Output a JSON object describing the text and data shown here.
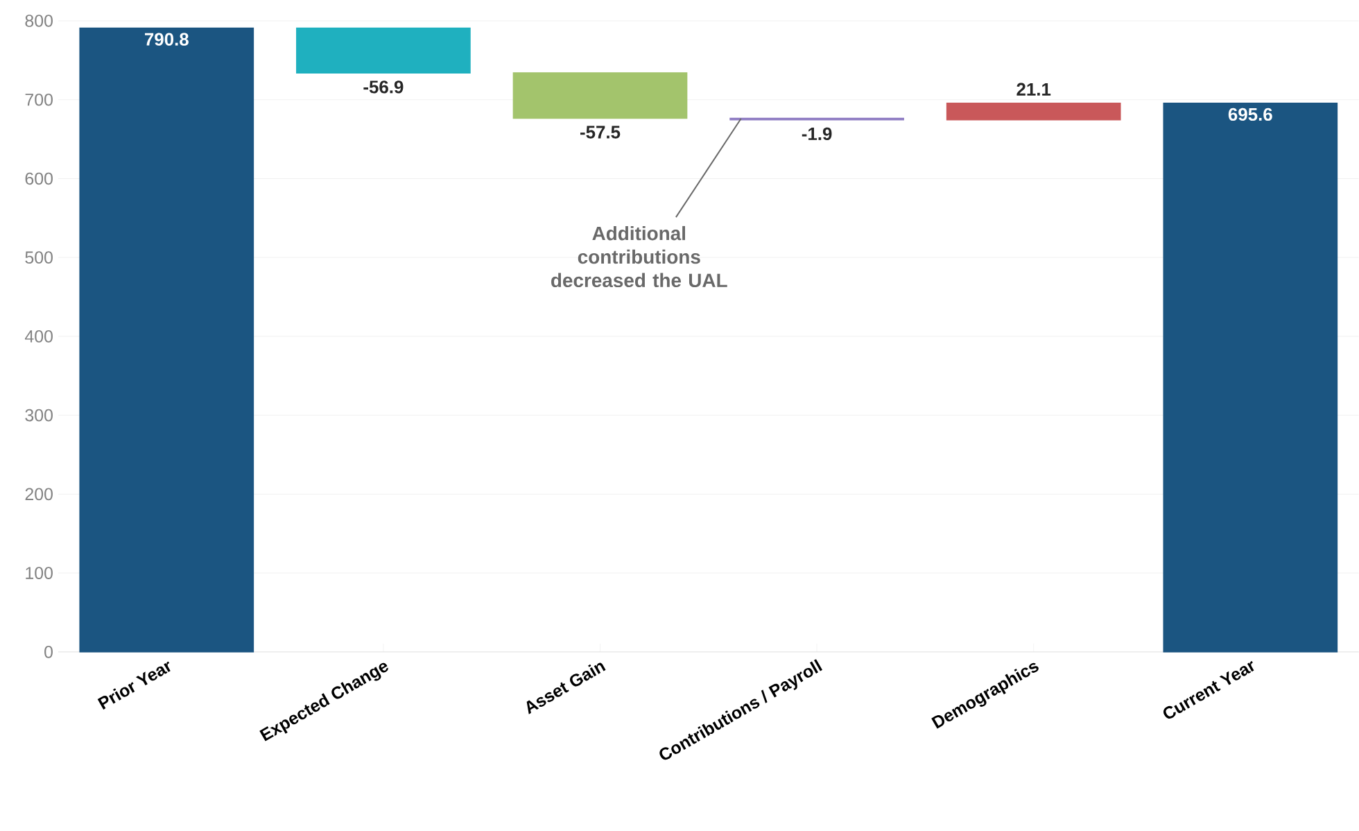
{
  "chart_data": {
    "type": "bar",
    "categories": [
      "Prior Year",
      "Expected Change",
      "Asset Gain",
      "Contributions / Payroll",
      "Demographics",
      "Current Year"
    ],
    "values": [
      790.8,
      -56.9,
      -57.5,
      -1.9,
      21.1,
      695.6
    ],
    "base": [
      0,
      790.8,
      733.9,
      676.4,
      674.5,
      0
    ],
    "colors": [
      "#1b5581",
      "#1fb0bf",
      "#a3c46c",
      "#8e7cc3",
      "#c9585a",
      "#1b5581"
    ],
    "value_labels": [
      "790.8",
      "-56.9",
      "-57.5",
      "-1.9",
      "21.1",
      "695.6"
    ],
    "ylim": [
      0,
      800
    ],
    "yticks": [
      0,
      100,
      200,
      300,
      400,
      500,
      600,
      700,
      800
    ],
    "grid": "y",
    "annotations": [
      {
        "text": "Additional contributions decreased the UAL",
        "x": "Contributions / Payroll",
        "y": 676
      }
    ]
  }
}
